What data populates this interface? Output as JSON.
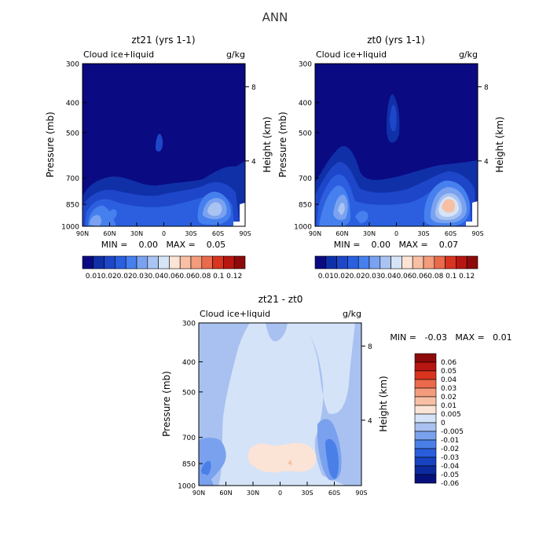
{
  "figure_title": "ANN",
  "colors": {
    "frame": "#000000",
    "background_text": "#000000",
    "abs_scale": [
      "#0a0a82",
      "#1030a8",
      "#1e46c8",
      "#2b5fe0",
      "#4680ee",
      "#7aa2f0",
      "#a9c4f2",
      "#d6e4f7",
      "#fbe3d6",
      "#f7c0a4",
      "#f39b7a",
      "#ea6a4c",
      "#d8341f",
      "#b81611",
      "#8e0a0a"
    ],
    "diff_scale": [
      "#07107a",
      "#0c2a9e",
      "#1842c0",
      "#2a5ddc",
      "#4a7fe8",
      "#7aa1ee",
      "#a8c1f0",
      "#d4e3f8",
      "#fbe3d6",
      "#f7c0a4",
      "#f39b7a",
      "#ea6a4c",
      "#d8341f",
      "#b81611",
      "#8e0a0a"
    ]
  },
  "panels": [
    {
      "id": "zt21",
      "title": "zt21 (yrs 1-1)",
      "variable": "Cloud ice+liquid",
      "units": "g/kg",
      "ylabel": "Pressure (mb)",
      "y2label": "Height (km)",
      "stats_text": "MIN =    0.00   MAX =    0.05",
      "colorbar_labels": [
        "0.01",
        "0.02",
        "0.02",
        "0.03",
        "0.04",
        "0.06",
        "0.06",
        "0.08",
        "0.1",
        "0.12"
      ]
    },
    {
      "id": "zt0",
      "title": "zt0 (yrs 1-1)",
      "variable": "Cloud ice+liquid",
      "units": "g/kg",
      "ylabel": "Pressure (mb)",
      "y2label": "Height (km)",
      "stats_text": "MIN =    0.00   MAX =    0.07",
      "colorbar_labels": [
        "0.01",
        "0.02",
        "0.02",
        "0.03",
        "0.04",
        "0.06",
        "0.06",
        "0.08",
        "0.1",
        "0.12"
      ]
    },
    {
      "id": "diff",
      "title": "zt21 - zt0",
      "variable": "Cloud ice+liquid",
      "units": "g/kg",
      "ylabel": "Pressure (mb)",
      "y2label": "Height (km)",
      "stats_text": "MIN =   -0.03   MAX =   0.01",
      "colorbar_labels": [
        "0.06",
        "0.05",
        "0.04",
        "0.03",
        "0.02",
        "0.01",
        "0.005",
        "0",
        "-0.005",
        "-0.01",
        "-0.02",
        "-0.03",
        "-0.04",
        "-0.05",
        "-0.06"
      ]
    }
  ],
  "chart_data": [
    {
      "type": "heatmap",
      "title": "zt21 (yrs 1-1)",
      "subtitle": "Cloud ice+liquid",
      "units": "g/kg",
      "xlabel": "",
      "ylabel": "Pressure (mb)",
      "y2label": "Height (km)",
      "x_ticks": [
        "90N",
        "60N",
        "30N",
        "0",
        "30S",
        "60S",
        "90S"
      ],
      "x_range": [
        90,
        -90
      ],
      "y_ticks": [
        300,
        400,
        500,
        700,
        850,
        1000
      ],
      "y_range": [
        300,
        1000
      ],
      "y_scale": "log",
      "y2_ticks": [
        8,
        4
      ],
      "min": 0.0,
      "max": 0.05,
      "levels": [
        0.01,
        0.02,
        0.02,
        0.03,
        0.04,
        0.06,
        0.06,
        0.08,
        0.1,
        0.12
      ],
      "features": [
        {
          "lat": -60,
          "pressure": 860,
          "value": 0.05
        },
        {
          "lat": 60,
          "pressure": 880,
          "value": 0.03
        },
        {
          "lat": 75,
          "pressure": 930,
          "value": 0.03
        },
        {
          "lat": 5,
          "pressure": 630,
          "value": 0.01
        },
        {
          "lat": 20,
          "pressure": 880,
          "value": 0.02
        }
      ],
      "grid": false
    },
    {
      "type": "heatmap",
      "title": "zt0 (yrs 1-1)",
      "subtitle": "Cloud ice+liquid",
      "units": "g/kg",
      "xlabel": "",
      "ylabel": "Pressure (mb)",
      "y2label": "Height (km)",
      "x_ticks": [
        "90N",
        "60N",
        "30N",
        "0",
        "30S",
        "60S",
        "90S"
      ],
      "x_range": [
        90,
        -90
      ],
      "y_ticks": [
        300,
        400,
        500,
        700,
        850,
        1000
      ],
      "y_range": [
        300,
        1000
      ],
      "y_scale": "log",
      "y2_ticks": [
        8,
        4
      ],
      "min": 0.0,
      "max": 0.07,
      "levels": [
        0.01,
        0.02,
        0.02,
        0.03,
        0.04,
        0.06,
        0.06,
        0.08,
        0.1,
        0.12
      ],
      "features": [
        {
          "lat": -60,
          "pressure": 870,
          "value": 0.07
        },
        {
          "lat": 60,
          "pressure": 880,
          "value": 0.04
        },
        {
          "lat": 78,
          "pressure": 900,
          "value": 0.03
        },
        {
          "lat": 0,
          "pressure": 560,
          "value": 0.02
        },
        {
          "lat": 20,
          "pressure": 880,
          "value": 0.02
        }
      ],
      "grid": false
    },
    {
      "type": "heatmap",
      "title": "zt21 - zt0",
      "subtitle": "Cloud ice+liquid",
      "units": "g/kg",
      "xlabel": "",
      "ylabel": "Pressure (mb)",
      "y2label": "Height (km)",
      "x_ticks": [
        "90N",
        "60N",
        "30N",
        "0",
        "30S",
        "60S",
        "90S"
      ],
      "x_range": [
        90,
        -90
      ],
      "y_ticks": [
        300,
        400,
        500,
        700,
        850,
        1000
      ],
      "y_range": [
        300,
        1000
      ],
      "y_scale": "log",
      "y2_ticks": [
        8,
        4
      ],
      "min": -0.03,
      "max": 0.01,
      "levels": [
        0.06,
        0.05,
        0.04,
        0.03,
        0.02,
        0.01,
        0.005,
        0,
        -0.005,
        -0.01,
        -0.02,
        -0.03,
        -0.04,
        -0.05,
        -0.06
      ],
      "features": [
        {
          "lat": -65,
          "pressure": 870,
          "value": -0.03
        },
        {
          "lat": -55,
          "pressure": 780,
          "value": -0.01
        },
        {
          "lat": 75,
          "pressure": 880,
          "value": -0.01
        },
        {
          "lat": 0,
          "pressure": 870,
          "value": 0.005
        },
        {
          "lat": 15,
          "pressure": 880,
          "value": 0.01
        },
        {
          "lat": 60,
          "pressure": 500,
          "value": -0.005
        },
        {
          "lat": -45,
          "pressure": 500,
          "value": -0.005
        }
      ],
      "grid": false
    }
  ]
}
